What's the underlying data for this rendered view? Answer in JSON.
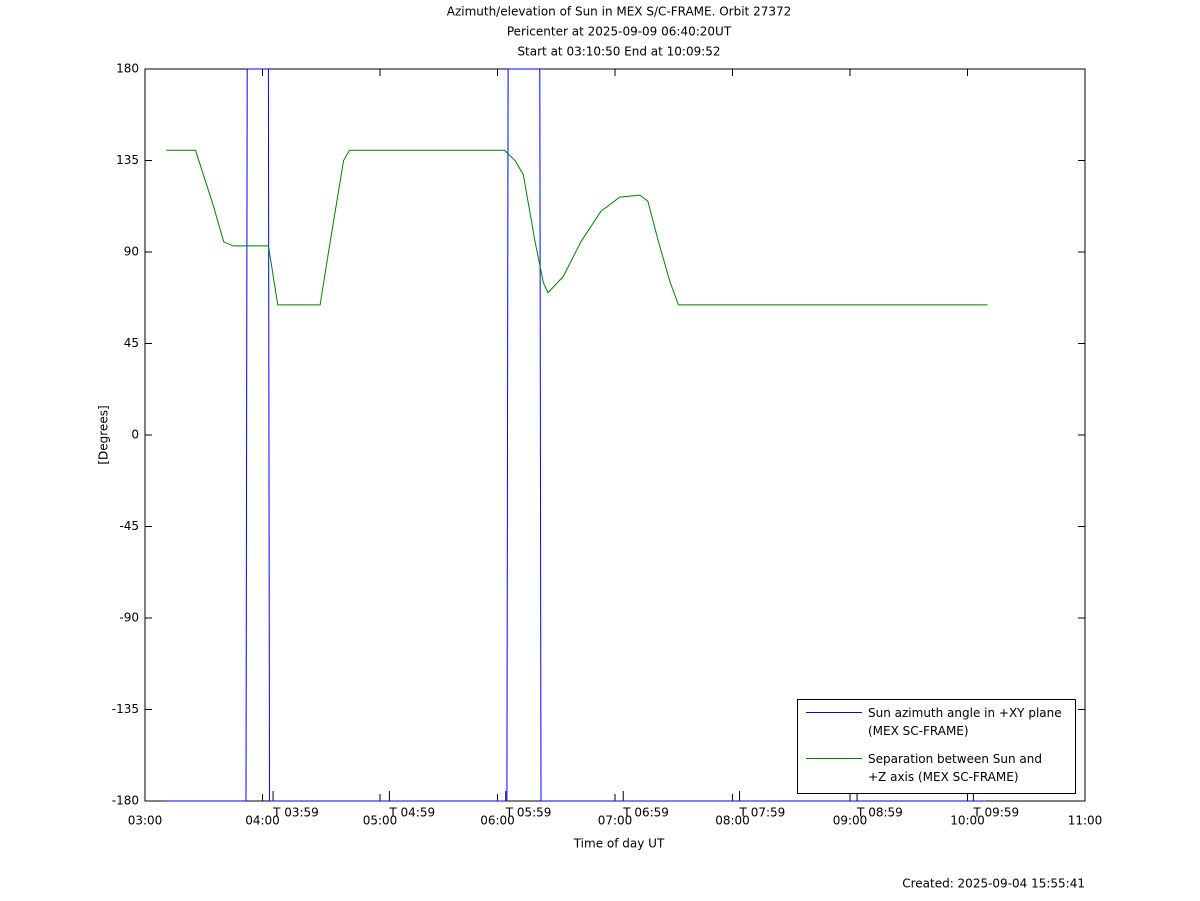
{
  "chart_data": {
    "type": "line",
    "title": "Azimuth/elevation of Sun in MEX S/C-FRAME.  Orbit 27372",
    "subtitle": [
      "Pericenter at 2025-09-09 06:40:20UT",
      "Start at 03:10:50 End at 10:09:52"
    ],
    "x_label": "Time of day UT",
    "y_label": "[Degrees]",
    "footer": "Created: 2025-09-04 15:55:41",
    "xlim": [
      3,
      11
    ],
    "xticks": [
      {
        "value": 3,
        "label": "03:00"
      },
      {
        "value": 4,
        "label": "04:00"
      },
      {
        "value": 5,
        "label": "05:00"
      },
      {
        "value": 6,
        "label": "06:00"
      },
      {
        "value": 7,
        "label": "07:00"
      },
      {
        "value": 8,
        "label": "08:00"
      },
      {
        "value": 9,
        "label": "09:00"
      },
      {
        "value": 10,
        "label": "10:00"
      },
      {
        "value": 11,
        "label": "11:00"
      }
    ],
    "ylim": [
      -180,
      180
    ],
    "yticks": [
      180,
      135,
      90,
      45,
      0,
      -45,
      -90,
      -135,
      -180
    ],
    "annotations": [
      {
        "x": 4.09,
        "text": "T 03:59"
      },
      {
        "x": 5.08,
        "text": "T 04:59"
      },
      {
        "x": 6.07,
        "text": "T 05:59"
      },
      {
        "x": 7.07,
        "text": "T 06:59"
      },
      {
        "x": 8.06,
        "text": "T 07:59"
      },
      {
        "x": 9.06,
        "text": "T 08:59"
      },
      {
        "x": 10.05,
        "text": "T 09:59"
      }
    ],
    "series": [
      {
        "name": "Sun azimuth angle in +XY plane (MEX SC-FRAME)",
        "color": "#0000ff",
        "x": [
          3.18,
          3.86,
          3.87,
          4.05,
          4.06,
          6.08,
          6.09,
          6.36,
          6.37,
          10.16
        ],
        "values": [
          -180,
          -180,
          180,
          180,
          -180,
          -180,
          180,
          180,
          -180,
          -180
        ]
      },
      {
        "name": "Separation between Sun and +Z axis (MEX SC-FRAME)",
        "color": "#008000",
        "x": [
          3.18,
          3.43,
          3.58,
          3.67,
          3.75,
          4.05,
          4.13,
          4.49,
          4.57,
          4.69,
          4.74,
          6.06,
          6.15,
          6.22,
          6.32,
          6.39,
          6.43,
          6.56,
          6.71,
          6.88,
          7.04,
          7.21,
          7.28,
          7.37,
          7.47,
          7.54,
          10.17
        ],
        "values": [
          140,
          140,
          113,
          95,
          93,
          93,
          64,
          64,
          93,
          135,
          140,
          140,
          135,
          128,
          95,
          75,
          70,
          78,
          95,
          110,
          117,
          118,
          115,
          95,
          75,
          64,
          64
        ]
      }
    ]
  }
}
